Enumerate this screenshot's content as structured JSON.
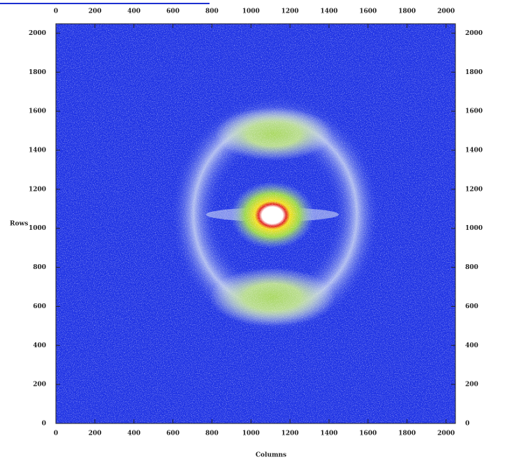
{
  "chart_data": {
    "type": "image",
    "xlabel": "Columns",
    "ylabel": "Rows",
    "xlim": [
      0,
      2048
    ],
    "ylim": [
      0,
      2048
    ],
    "xticks": [
      0,
      200,
      400,
      600,
      800,
      1000,
      1200,
      1400,
      1600,
      1800,
      2000
    ],
    "yticks": [
      0,
      200,
      400,
      600,
      800,
      1000,
      1200,
      1400,
      1600,
      1800,
      2000
    ]
  }
}
